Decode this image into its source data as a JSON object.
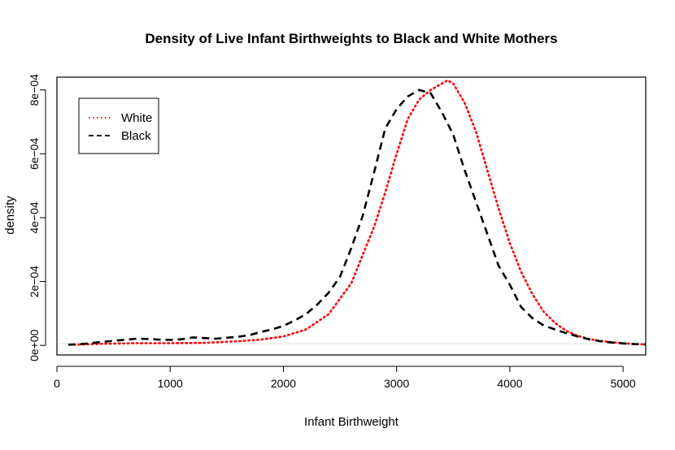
{
  "chart_data": {
    "type": "line",
    "title": "Density of Live Infant Birthweights to Black and White Mothers",
    "xlabel": "Infant Birthweight",
    "ylabel": "density",
    "xlim": [
      0,
      5200
    ],
    "ylim": [
      -3e-05,
      0.00084
    ],
    "x_ticks": [
      0,
      1000,
      2000,
      3000,
      4000,
      5000
    ],
    "x_tick_labels": [
      "0",
      "1000",
      "2000",
      "3000",
      "4000",
      "5000"
    ],
    "y_ticks": [
      0,
      0.0002,
      0.0004,
      0.0006,
      0.0008
    ],
    "y_tick_labels": [
      "0e+00",
      "2e−04",
      "4e−04",
      "6e−04",
      "8e−04"
    ],
    "baseline": 0,
    "grid": false,
    "legend": {
      "position": "top-left"
    },
    "series": [
      {
        "name": "White",
        "color": "#ff0000",
        "style": "dotted",
        "x": [
          150,
          400,
          700,
          1000,
          1300,
          1600,
          1800,
          2000,
          2200,
          2400,
          2600,
          2800,
          2900,
          3000,
          3100,
          3200,
          3300,
          3400,
          3450,
          3500,
          3600,
          3700,
          3800,
          3900,
          4000,
          4100,
          4200,
          4300,
          4400,
          4500,
          4600,
          4700,
          4800,
          4900,
          5000,
          5100,
          5200
        ],
        "y": [
          2e-06,
          5e-06,
          7e-06,
          7e-06,
          8e-06,
          1.3e-05,
          1.8e-05,
          2.8e-05,
          5e-05,
          9.8e-05,
          0.000195,
          0.00037,
          0.00048,
          0.0006,
          0.00071,
          0.00077,
          0.0008,
          0.00082,
          0.00083,
          0.00082,
          0.00076,
          0.00067,
          0.00055,
          0.00043,
          0.00032,
          0.00023,
          0.00016,
          0.000105,
          7e-05,
          4.5e-05,
          3e-05,
          2e-05,
          1.4e-05,
          1e-05,
          7e-06,
          4e-06,
          3e-06
        ]
      },
      {
        "name": "Black",
        "color": "#000000",
        "style": "dashed",
        "x": [
          100,
          250,
          400,
          550,
          700,
          800,
          900,
          1000,
          1100,
          1200,
          1300,
          1400,
          1500,
          1600,
          1700,
          1800,
          1900,
          2000,
          2100,
          2200,
          2300,
          2400,
          2500,
          2600,
          2700,
          2800,
          2900,
          3000,
          3100,
          3200,
          3300,
          3400,
          3500,
          3600,
          3700,
          3800,
          3900,
          4000,
          4100,
          4200,
          4300,
          4400,
          4500,
          4600,
          4700,
          4800,
          4900,
          5000,
          5100,
          5200
        ],
        "y": [
          2e-06,
          5e-06,
          1.1e-05,
          1.6e-05,
          2.1e-05,
          2e-05,
          1.8e-05,
          1.7e-05,
          1.9e-05,
          2.5e-05,
          2.3e-05,
          2.1e-05,
          2.4e-05,
          2.7e-05,
          3.2e-05,
          4.2e-05,
          5e-05,
          6.1e-05,
          7.8e-05,
          9.8e-05,
          0.000128,
          0.000165,
          0.000215,
          0.000305,
          0.000405,
          0.00054,
          0.00068,
          0.00074,
          0.00078,
          0.0008,
          0.00079,
          0.00073,
          0.00066,
          0.00055,
          0.00045,
          0.00035,
          0.00025,
          0.00019,
          0.00012,
          8.5e-05,
          6.2e-05,
          5e-05,
          3.8e-05,
          2.8e-05,
          1.9e-05,
          1.3e-05,
          9e-06,
          6e-06,
          4e-06,
          3e-06
        ]
      }
    ]
  }
}
